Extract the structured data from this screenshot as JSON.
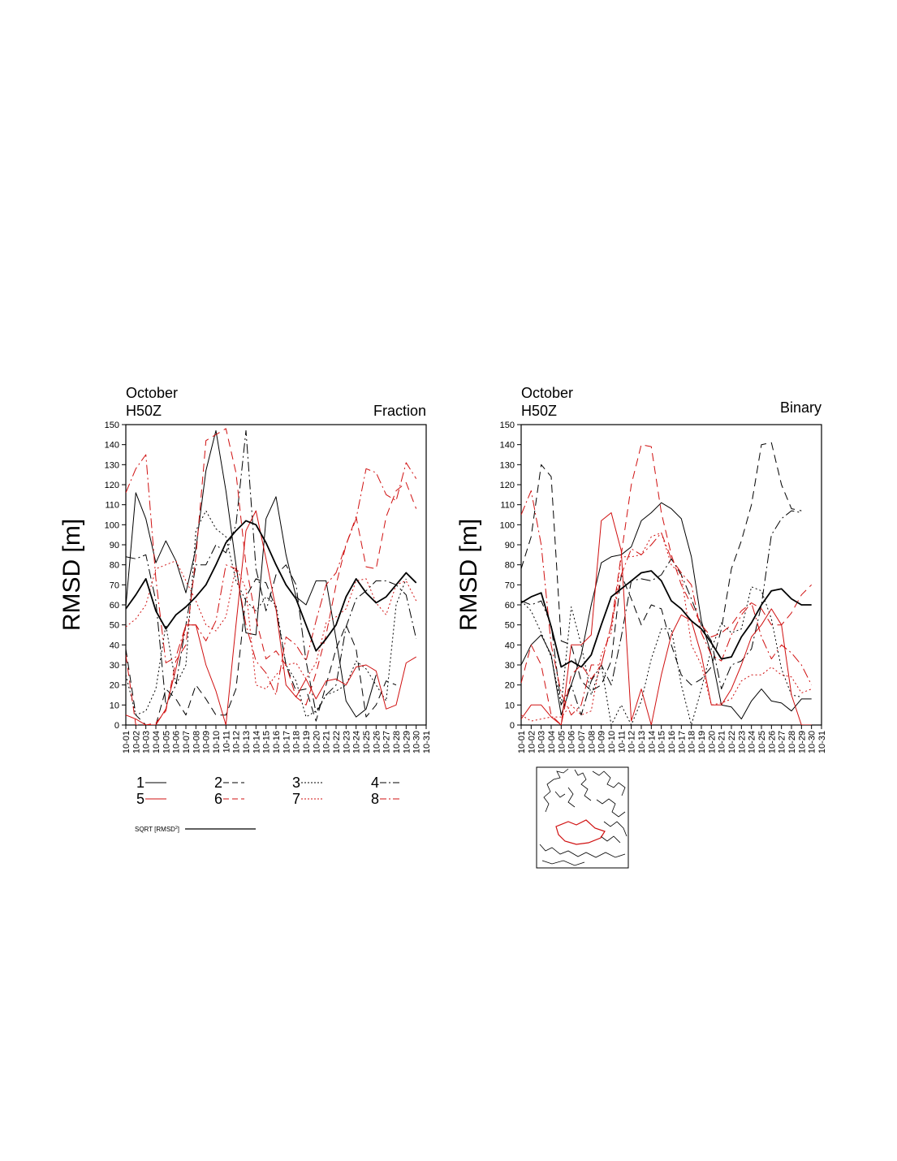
{
  "chart_data": [
    {
      "type": "line",
      "title_left_line1": "October",
      "title_left_line2": "H50Z",
      "title_right": "Fraction",
      "ylabel": "RMSD [m]",
      "ylim": [
        0,
        150
      ],
      "yticks": [
        "0",
        "10",
        "20",
        "30",
        "40",
        "50",
        "60",
        "70",
        "80",
        "90",
        "100",
        "110",
        "120",
        "130",
        "140",
        "150"
      ],
      "xticks": [
        "10-01",
        "10-02",
        "10-03",
        "10-04",
        "10-05",
        "10-06",
        "10-07",
        "10-08",
        "10-09",
        "10-10",
        "10-11",
        "10-12",
        "10-13",
        "10-14",
        "10-15",
        "10-16",
        "10-17",
        "10-18",
        "10-19",
        "10-20",
        "10-21",
        "10-22",
        "10-23",
        "10-24",
        "10-25",
        "10-26",
        "10-27",
        "10-28",
        "10-29",
        "10-30",
        "10-31"
      ],
      "series": [
        {
          "name": "1",
          "color": "#000000",
          "dash": "solid",
          "values": [
            59,
            116,
            103,
            81,
            92,
            82,
            66,
            88,
            127,
            147,
            117,
            80,
            46,
            45,
            103,
            114,
            85,
            64,
            60,
            72,
            72,
            43,
            12,
            4,
            8,
            25
          ]
        },
        {
          "name": "2",
          "color": "#000000",
          "dash": "long-dash",
          "values": [
            38,
            5,
            0,
            0,
            18,
            13,
            5,
            20,
            13,
            5,
            5,
            18,
            64,
            73,
            71,
            58,
            30,
            17,
            18,
            2,
            20,
            38,
            50,
            38,
            4,
            10,
            22,
            20
          ]
        },
        {
          "name": "3",
          "color": "#000000",
          "dash": "dotted",
          "values": [
            25,
            5,
            7,
            18,
            50,
            20,
            30,
            97,
            107,
            98,
            94,
            72,
            62,
            57,
            64,
            60,
            30,
            22,
            4,
            7,
            15,
            17,
            20,
            32,
            28,
            20,
            12,
            60,
            73
          ]
        },
        {
          "name": "4",
          "color": "#000000",
          "dash": "dash-dot",
          "values": [
            84,
            83,
            85,
            62,
            10,
            20,
            50,
            80,
            80,
            90,
            86,
            100,
            147,
            78,
            57,
            75,
            80,
            70,
            32,
            6,
            15,
            20,
            49,
            63,
            67,
            72,
            72,
            70,
            65,
            43
          ]
        },
        {
          "name": "5",
          "color": "#d01010",
          "dash": "solid",
          "values": [
            5,
            3,
            0,
            0,
            8,
            28,
            50,
            50,
            30,
            17,
            0,
            50,
            97,
            107,
            83,
            58,
            20,
            14,
            23,
            13,
            22,
            23,
            20,
            29,
            30,
            27,
            8,
            10,
            31,
            34
          ]
        },
        {
          "name": "6",
          "color": "#d01010",
          "dash": "long-dash",
          "values": [
            35,
            0,
            0,
            1,
            7,
            32,
            40,
            84,
            142,
            145,
            148,
            126,
            80,
            53,
            33,
            37,
            30,
            14,
            10,
            26,
            45,
            70,
            90,
            104,
            79,
            78,
            104,
            117,
            121,
            108
          ]
        },
        {
          "name": "7",
          "color": "#d01010",
          "dash": "dotted",
          "values": [
            49,
            53,
            60,
            78,
            80,
            82,
            72,
            62,
            50,
            47,
            54,
            79,
            68,
            20,
            18,
            25,
            30,
            31,
            23,
            31,
            51,
            54,
            58,
            72,
            73,
            61,
            55,
            70,
            72,
            62
          ]
        },
        {
          "name": "8",
          "color": "#d01010",
          "dash": "dash-dot",
          "values": [
            116,
            128,
            135,
            73,
            31,
            34,
            50,
            50,
            42,
            52,
            80,
            78,
            50,
            32,
            26,
            15,
            44,
            40,
            32,
            52,
            70,
            76,
            90,
            103,
            128,
            126,
            115,
            112,
            131,
            123
          ]
        },
        {
          "name": "SQRT [RMSD²]",
          "color": "#000000",
          "dash": "solid-thick",
          "values": [
            58,
            65,
            73,
            57,
            48,
            55,
            59,
            64,
            70,
            80,
            91,
            97,
            102,
            100,
            91,
            80,
            70,
            63,
            50,
            37,
            43,
            50,
            64,
            73,
            66,
            61,
            64,
            70,
            76,
            71
          ]
        }
      ]
    },
    {
      "type": "line",
      "title_left_line1": "October",
      "title_left_line2": "H50Z",
      "title_right": "Binary",
      "ylabel": "RMSD [m]",
      "ylim": [
        0,
        150
      ],
      "yticks": [
        "0",
        "10",
        "20",
        "30",
        "40",
        "50",
        "60",
        "70",
        "80",
        "90",
        "100",
        "110",
        "120",
        "130",
        "140",
        "150"
      ],
      "xticks": [
        "10-01",
        "10-02",
        "10-03",
        "10-04",
        "10-05",
        "10-06",
        "10-07",
        "10-08",
        "10-09",
        "10-10",
        "10-11",
        "10-12",
        "10-13",
        "10-14",
        "10-15",
        "10-16",
        "10-17",
        "10-18",
        "10-19",
        "10-20",
        "10-21",
        "10-22",
        "10-23",
        "10-24",
        "10-25",
        "10-26",
        "10-27",
        "10-28",
        "10-29",
        "10-30",
        "10-31"
      ],
      "series": [
        {
          "name": "1",
          "color": "#000000",
          "dash": "solid",
          "values": [
            30,
            40,
            45,
            35,
            5,
            20,
            35,
            60,
            81,
            84,
            85,
            89,
            102,
            106,
            111,
            108,
            103,
            84,
            52,
            35,
            10,
            9,
            3,
            12,
            18,
            12,
            11,
            7,
            13,
            13
          ]
        },
        {
          "name": "2",
          "color": "#000000",
          "dash": "long-dash",
          "values": [
            78,
            94,
            130,
            124,
            42,
            40,
            22,
            17,
            20,
            32,
            75,
            63,
            50,
            60,
            58,
            40,
            25,
            20,
            23,
            29,
            48,
            78,
            92,
            110,
            140,
            141,
            120,
            108,
            107
          ]
        },
        {
          "name": "3",
          "color": "#000000",
          "dash": "dotted",
          "values": [
            62,
            57,
            46,
            34,
            10,
            59,
            40,
            15,
            30,
            0,
            10,
            0,
            12,
            33,
            48,
            48,
            20,
            0,
            18,
            38,
            51,
            46,
            48,
            69,
            67,
            53,
            28,
            15,
            14
          ]
        },
        {
          "name": "4",
          "color": "#000000",
          "dash": "dash-dot",
          "values": [
            62,
            60,
            62,
            50,
            10,
            20,
            5,
            22,
            30,
            20,
            44,
            72,
            73,
            72,
            75,
            83,
            75,
            63,
            50,
            42,
            18,
            30,
            32,
            38,
            60,
            95,
            103,
            107,
            106
          ]
        },
        {
          "name": "5",
          "color": "#d01010",
          "dash": "solid",
          "values": [
            3,
            10,
            10,
            4,
            0,
            40,
            40,
            45,
            102,
            106,
            87,
            2,
            18,
            0,
            25,
            45,
            55,
            52,
            35,
            10,
            10,
            18,
            30,
            44,
            50,
            58,
            50,
            15,
            0,
            0
          ]
        },
        {
          "name": "6",
          "color": "#d01010",
          "dash": "long-dash",
          "values": [
            21,
            40,
            30,
            5,
            0,
            25,
            30,
            23,
            30,
            50,
            85,
            120,
            140,
            139,
            106,
            85,
            70,
            60,
            50,
            44,
            46,
            50,
            57,
            61,
            58,
            50,
            50,
            56,
            65,
            70
          ]
        },
        {
          "name": "7",
          "color": "#d01010",
          "dash": "dotted",
          "values": [
            5,
            2,
            3,
            4,
            4,
            10,
            5,
            7,
            35,
            46,
            84,
            84,
            85,
            94,
            96,
            80,
            75,
            40,
            30,
            10,
            11,
            13,
            22,
            25,
            25,
            29,
            25,
            24,
            16,
            18
          ]
        },
        {
          "name": "8",
          "color": "#d01010",
          "dash": "dash-dot",
          "values": [
            105,
            117,
            90,
            40,
            16,
            5,
            10,
            30,
            30,
            50,
            75,
            88,
            85,
            90,
            96,
            83,
            76,
            70,
            46,
            35,
            32,
            45,
            55,
            61,
            44,
            33,
            40,
            36,
            30,
            20
          ]
        },
        {
          "name": "SQRT [RMSD²]",
          "color": "#000000",
          "dash": "solid-thick",
          "values": [
            61,
            64,
            66,
            49,
            29,
            32,
            29,
            35,
            50,
            64,
            68,
            72,
            76,
            77,
            72,
            62,
            58,
            52,
            48,
            41,
            33,
            34,
            44,
            51,
            60,
            67,
            68,
            63,
            60,
            60
          ]
        }
      ]
    }
  ],
  "legend": {
    "items": [
      {
        "label": "1",
        "color": "#000000",
        "dash": "solid"
      },
      {
        "label": "2",
        "color": "#000000",
        "dash": "long-dash"
      },
      {
        "label": "3",
        "color": "#000000",
        "dash": "dotted"
      },
      {
        "label": "4",
        "color": "#000000",
        "dash": "dash-dot"
      },
      {
        "label": "5",
        "color": "#d01010",
        "dash": "solid"
      },
      {
        "label": "6",
        "color": "#d01010",
        "dash": "long-dash"
      },
      {
        "label": "7",
        "color": "#d01010",
        "dash": "dotted"
      },
      {
        "label": "8",
        "color": "#d01010",
        "dash": "dash-dot"
      }
    ],
    "sqrt_label": "SQRT [RMSD",
    "sqrt_sup": "2",
    "sqrt_close": "]"
  },
  "inset_map": {
    "icon": "region-map-icon",
    "region_color": "#d01010"
  }
}
